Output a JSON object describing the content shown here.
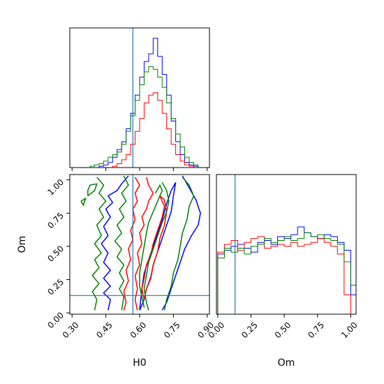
{
  "chart_data": {
    "type": "corner",
    "parameters": [
      "H0",
      "Om"
    ],
    "xlabel_H0": "H0",
    "xlabel_Om": "Om",
    "ylabel_Om": "Om",
    "ranges": {
      "H0": [
        0.29,
        0.91
      ],
      "Om": [
        -0.01,
        1.04
      ]
    },
    "ticks": {
      "H0": [
        "0.30",
        "0.45",
        "0.60",
        "0.75",
        "0.90"
      ],
      "Om": [
        "0.00",
        "0.25",
        "0.50",
        "0.75",
        "1.00"
      ]
    },
    "truths": {
      "H0": 0.57,
      "Om": 0.13
    },
    "colors": {
      "blue": "#0000ff",
      "red": "#ff0000",
      "green": "#008000",
      "truth": "#1f77b4"
    },
    "histograms": {
      "H0": {
        "edges": [
          0.3,
          0.32,
          0.34,
          0.36,
          0.38,
          0.4,
          0.42,
          0.44,
          0.46,
          0.48,
          0.5,
          0.52,
          0.54,
          0.56,
          0.58,
          0.6,
          0.62,
          0.64,
          0.66,
          0.68,
          0.7,
          0.72,
          0.74,
          0.76,
          0.78,
          0.8,
          0.82,
          0.84,
          0.86,
          0.88
        ],
        "series": [
          {
            "color": "#0000ff",
            "counts": [
              0,
              0,
              0,
              0,
              0,
              0,
              1,
              2,
              4,
              8,
              14,
              20,
              30,
              42,
              56,
              70,
              82,
              88,
              100,
              86,
              72,
              56,
              36,
              20,
              10,
              4,
              2,
              1,
              0
            ]
          },
          {
            "color": "#ff0000",
            "counts": [
              0,
              0,
              0,
              0,
              0,
              0,
              0,
              0,
              0,
              1,
              3,
              6,
              10,
              18,
              28,
              38,
              50,
              56,
              58,
              52,
              42,
              30,
              18,
              10,
              5,
              2,
              1,
              0,
              0
            ]
          },
          {
            "color": "#008000",
            "counts": [
              0,
              0,
              0,
              0,
              1,
              2,
              3,
              5,
              8,
              10,
              12,
              18,
              28,
              40,
              52,
              64,
              74,
              78,
              76,
              70,
              62,
              50,
              38,
              26,
              16,
              8,
              4,
              2,
              0
            ]
          }
        ]
      },
      "Om": {
        "edges": [
          0.0,
          0.05,
          0.1,
          0.15,
          0.2,
          0.25,
          0.3,
          0.35,
          0.4,
          0.45,
          0.5,
          0.55,
          0.6,
          0.65,
          0.7,
          0.75,
          0.8,
          0.85,
          0.9,
          0.95,
          1.0,
          1.04
        ],
        "series": [
          {
            "color": "#0000ff",
            "counts": [
              62,
              66,
              70,
              72,
              68,
              64,
              74,
              76,
              72,
              80,
              78,
              82,
              90,
              84,
              80,
              78,
              82,
              80,
              74,
              66,
              20
            ]
          },
          {
            "color": "#ff0000",
            "counts": [
              64,
              72,
              76,
              66,
              74,
              78,
              80,
              68,
              70,
              72,
              70,
              74,
              70,
              72,
              74,
              78,
              74,
              70,
              62,
              20,
              0
            ]
          },
          {
            "color": "#008000",
            "counts": [
              58,
              68,
              64,
              68,
              62,
              70,
              72,
              78,
              74,
              76,
              80,
              76,
              78,
              84,
              80,
              82,
              78,
              76,
              72,
              54,
              30
            ]
          }
        ]
      }
    },
    "contours": [
      {
        "color": "#0000ff",
        "paths": [
          [
            [
              0.55,
              1.03
            ],
            [
              0.52,
              0.97
            ],
            [
              0.5,
              0.92
            ],
            [
              0.46,
              0.88
            ],
            [
              0.48,
              0.83
            ],
            [
              0.45,
              0.78
            ],
            [
              0.47,
              0.72
            ],
            [
              0.44,
              0.65
            ],
            [
              0.46,
              0.58
            ],
            [
              0.43,
              0.52
            ],
            [
              0.46,
              0.45
            ],
            [
              0.44,
              0.38
            ],
            [
              0.47,
              0.32
            ],
            [
              0.44,
              0.26
            ],
            [
              0.47,
              0.2
            ],
            [
              0.44,
              0.15
            ],
            [
              0.47,
              0.1
            ],
            [
              0.46,
              0.02
            ]
          ],
          [
            [
              0.79,
              1.03
            ],
            [
              0.82,
              0.94
            ],
            [
              0.85,
              0.85
            ],
            [
              0.87,
              0.75
            ],
            [
              0.86,
              0.66
            ],
            [
              0.83,
              0.58
            ],
            [
              0.8,
              0.48
            ],
            [
              0.78,
              0.38
            ],
            [
              0.76,
              0.28
            ],
            [
              0.74,
              0.18
            ],
            [
              0.72,
              0.08
            ],
            [
              0.7,
              0.02
            ]
          ],
          [
            [
              0.6,
              0.02
            ],
            [
              0.62,
              0.1
            ],
            [
              0.63,
              0.18
            ],
            [
              0.65,
              0.27
            ],
            [
              0.66,
              0.36
            ],
            [
              0.68,
              0.46
            ],
            [
              0.7,
              0.56
            ],
            [
              0.72,
              0.66
            ],
            [
              0.74,
              0.76
            ],
            [
              0.75,
              0.88
            ],
            [
              0.76,
              0.98
            ],
            [
              0.74,
              0.92
            ],
            [
              0.72,
              0.82
            ],
            [
              0.7,
              0.7
            ],
            [
              0.68,
              0.6
            ],
            [
              0.66,
              0.5
            ],
            [
              0.64,
              0.4
            ],
            [
              0.62,
              0.3
            ],
            [
              0.61,
              0.18
            ],
            [
              0.6,
              0.02
            ]
          ]
        ]
      },
      {
        "color": "#ff0000",
        "paths": [
          [
            [
              0.58,
              1.02
            ],
            [
              0.6,
              0.96
            ],
            [
              0.58,
              0.9
            ],
            [
              0.59,
              0.84
            ],
            [
              0.57,
              0.78
            ],
            [
              0.58,
              0.7
            ],
            [
              0.56,
              0.62
            ],
            [
              0.57,
              0.55
            ],
            [
              0.55,
              0.48
            ],
            [
              0.56,
              0.4
            ],
            [
              0.54,
              0.32
            ],
            [
              0.55,
              0.24
            ],
            [
              0.53,
              0.16
            ],
            [
              0.54,
              0.08
            ],
            [
              0.53,
              0.02
            ]
          ],
          [
            [
              0.63,
              1.02
            ],
            [
              0.64,
              0.96
            ],
            [
              0.66,
              0.9
            ],
            [
              0.64,
              0.84
            ],
            [
              0.63,
              0.78
            ],
            [
              0.61,
              0.72
            ],
            [
              0.62,
              0.66
            ],
            [
              0.6,
              0.6
            ],
            [
              0.61,
              0.52
            ],
            [
              0.59,
              0.45
            ],
            [
              0.6,
              0.36
            ],
            [
              0.58,
              0.28
            ],
            [
              0.59,
              0.18
            ],
            [
              0.58,
              0.1
            ],
            [
              0.59,
              0.02
            ]
          ],
          [
            [
              0.69,
              0.88
            ],
            [
              0.71,
              0.8
            ],
            [
              0.7,
              0.72
            ],
            [
              0.68,
              0.62
            ],
            [
              0.66,
              0.52
            ],
            [
              0.65,
              0.44
            ],
            [
              0.63,
              0.36
            ],
            [
              0.62,
              0.26
            ],
            [
              0.61,
              0.18
            ],
            [
              0.62,
              0.1
            ],
            [
              0.63,
              0.18
            ],
            [
              0.65,
              0.26
            ],
            [
              0.66,
              0.36
            ],
            [
              0.68,
              0.46
            ],
            [
              0.69,
              0.56
            ],
            [
              0.71,
              0.66
            ],
            [
              0.72,
              0.76
            ],
            [
              0.71,
              0.85
            ],
            [
              0.69,
              0.88
            ]
          ]
        ]
      },
      {
        "color": "#008000",
        "paths": [
          [
            [
              0.37,
              0.88
            ],
            [
              0.4,
              0.92
            ],
            [
              0.41,
              0.97
            ],
            [
              0.38,
              0.96
            ],
            [
              0.37,
              0.92
            ],
            [
              0.37,
              0.88
            ]
          ],
          [
            [
              0.34,
              0.84
            ],
            [
              0.36,
              0.86
            ],
            [
              0.35,
              0.81
            ],
            [
              0.34,
              0.84
            ]
          ],
          [
            [
              0.41,
              1.02
            ],
            [
              0.44,
              0.96
            ],
            [
              0.42,
              0.9
            ],
            [
              0.45,
              0.84
            ],
            [
              0.42,
              0.78
            ],
            [
              0.44,
              0.72
            ],
            [
              0.41,
              0.66
            ],
            [
              0.43,
              0.58
            ],
            [
              0.4,
              0.52
            ],
            [
              0.43,
              0.45
            ],
            [
              0.4,
              0.4
            ],
            [
              0.42,
              0.34
            ],
            [
              0.39,
              0.28
            ],
            [
              0.42,
              0.22
            ],
            [
              0.39,
              0.16
            ],
            [
              0.41,
              0.1
            ],
            [
              0.4,
              0.02
            ]
          ],
          [
            [
              0.53,
              1.03
            ],
            [
              0.55,
              0.96
            ],
            [
              0.52,
              0.9
            ],
            [
              0.54,
              0.84
            ],
            [
              0.51,
              0.78
            ],
            [
              0.53,
              0.72
            ],
            [
              0.5,
              0.66
            ],
            [
              0.52,
              0.6
            ],
            [
              0.49,
              0.54
            ],
            [
              0.52,
              0.48
            ],
            [
              0.5,
              0.42
            ],
            [
              0.53,
              0.36
            ],
            [
              0.51,
              0.3
            ],
            [
              0.53,
              0.24
            ],
            [
              0.51,
              0.18
            ],
            [
              0.53,
              0.12
            ],
            [
              0.52,
              0.02
            ]
          ],
          [
            [
              0.67,
              0.9
            ],
            [
              0.69,
              0.96
            ],
            [
              0.7,
              0.92
            ],
            [
              0.68,
              0.84
            ],
            [
              0.66,
              0.76
            ],
            [
              0.64,
              0.68
            ],
            [
              0.63,
              0.6
            ],
            [
              0.62,
              0.5
            ],
            [
              0.61,
              0.4
            ],
            [
              0.6,
              0.3
            ],
            [
              0.6,
              0.2
            ],
            [
              0.61,
              0.12
            ],
            [
              0.62,
              0.04
            ]
          ],
          [
            [
              0.7,
              0.98
            ],
            [
              0.72,
              0.92
            ],
            [
              0.73,
              0.84
            ],
            [
              0.72,
              0.76
            ],
            [
              0.7,
              0.68
            ],
            [
              0.68,
              0.58
            ],
            [
              0.66,
              0.48
            ],
            [
              0.64,
              0.38
            ],
            [
              0.63,
              0.28
            ],
            [
              0.62,
              0.18
            ],
            [
              0.63,
              0.08
            ],
            [
              0.64,
              0.02
            ]
          ],
          [
            [
              0.79,
              1.02
            ],
            [
              0.82,
              0.96
            ],
            [
              0.84,
              0.88
            ],
            [
              0.82,
              0.8
            ],
            [
              0.81,
              0.7
            ],
            [
              0.79,
              0.6
            ],
            [
              0.78,
              0.5
            ],
            [
              0.77,
              0.4
            ],
            [
              0.75,
              0.3
            ],
            [
              0.74,
              0.2
            ],
            [
              0.72,
              0.1
            ],
            [
              0.71,
              0.02
            ]
          ]
        ]
      }
    ]
  }
}
